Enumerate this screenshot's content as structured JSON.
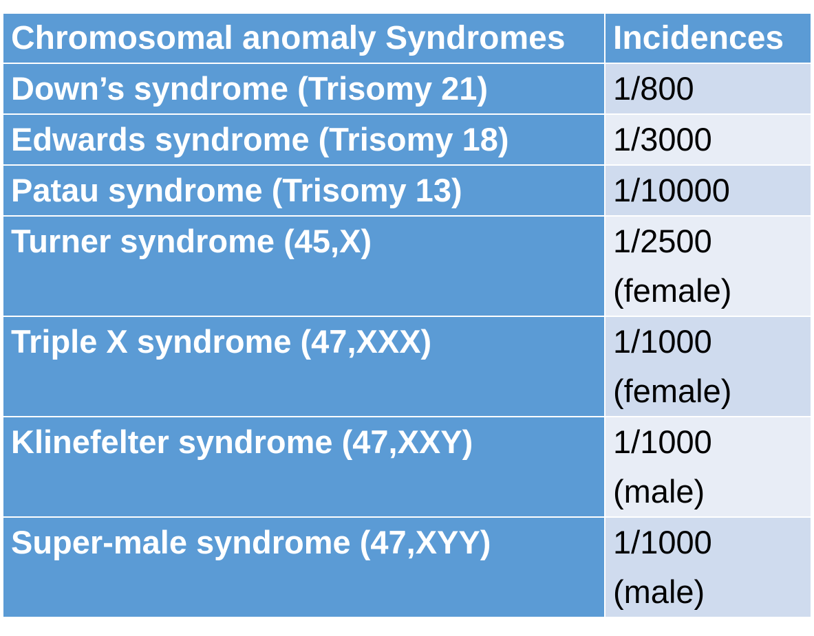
{
  "table": {
    "headers": {
      "syndrome": "Chromosomal anomaly Syndromes",
      "incidence": "Incidences"
    },
    "rows": [
      {
        "syndrome": "Down’s syndrome (Trisomy 21)",
        "incidence": "1/800",
        "note": ""
      },
      {
        "syndrome": "Edwards syndrome (Trisomy 18)",
        "incidence": "1/3000",
        "note": ""
      },
      {
        "syndrome": "Patau syndrome (Trisomy 13)",
        "incidence": "1/10000",
        "note": ""
      },
      {
        "syndrome": "Turner syndrome (45,X)",
        "incidence": "1/2500",
        "note": "(female)"
      },
      {
        "syndrome": "Triple X syndrome (47,XXX)",
        "incidence": "1/1000",
        "note": "(female)"
      },
      {
        "syndrome": "Klinefelter syndrome (47,XXY)",
        "incidence": "1/1000",
        "note": "(male)"
      },
      {
        "syndrome": "Super-male syndrome (47,XYY)",
        "incidence": "1/1000",
        "note": "(male)"
      }
    ]
  },
  "colors": {
    "header_bg": "#5b9bd5",
    "name_cell_bg": "#5b9bd5",
    "incidence_odd_bg": "#cfdbee",
    "incidence_even_bg": "#e8edf6",
    "border": "#ffffff"
  }
}
